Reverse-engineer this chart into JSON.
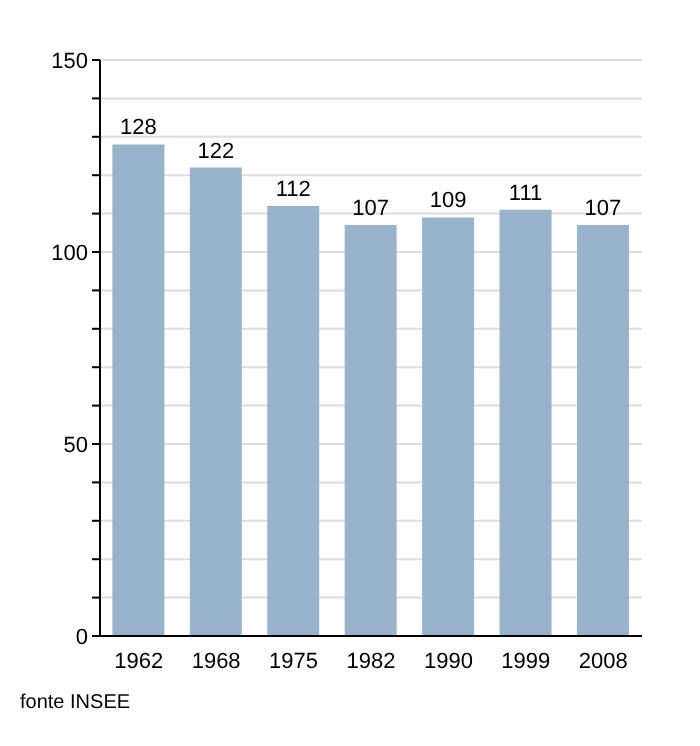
{
  "chart_data": {
    "type": "bar",
    "categories": [
      "1962",
      "1968",
      "1975",
      "1982",
      "1990",
      "1999",
      "2008"
    ],
    "values": [
      128,
      122,
      112,
      107,
      109,
      111,
      107
    ],
    "color": "#99b3cc",
    "ylim": [
      0,
      150
    ],
    "yticks": [
      0,
      {
        "value": 10,
        "label": null
      },
      {
        "value": 20,
        "label": null
      },
      {
        "value": 30,
        "label": null
      },
      {
        "value": 40,
        "label": null
      },
      50,
      {
        "value": 60,
        "label": null
      },
      {
        "value": 70,
        "label": null
      },
      {
        "value": 80,
        "label": null
      },
      {
        "value": 90,
        "label": null
      },
      100,
      {
        "value": 110,
        "label": null
      },
      {
        "value": 120,
        "label": null
      },
      {
        "value": 130,
        "label": null
      },
      {
        "value": 140,
        "label": null
      },
      150
    ],
    "grid": "y",
    "data_labels": true,
    "annotations": [
      "fonte INSEE"
    ]
  }
}
